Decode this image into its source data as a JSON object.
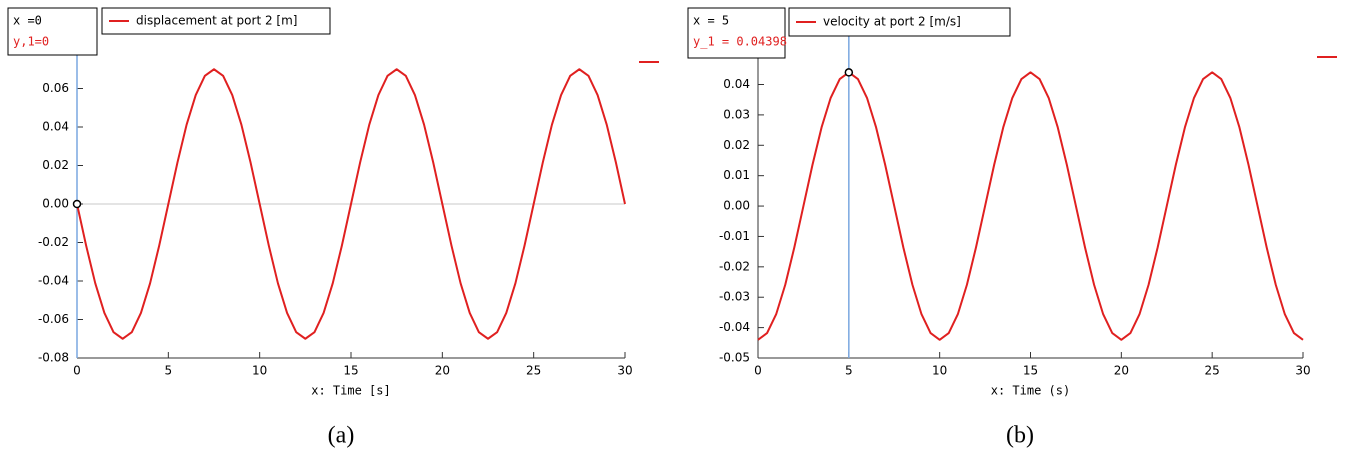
{
  "chart_data": [
    {
      "type": "line",
      "xlim": [
        0,
        30
      ],
      "ylim": [
        -0.08,
        0.08
      ],
      "xticks": [
        0,
        5,
        10,
        15,
        20,
        25,
        30
      ],
      "yticks": [
        -0.08,
        -0.06,
        -0.04,
        -0.02,
        {
          "value": 0,
          "label": "0.00"
        },
        0.02,
        0.04,
        0.06
      ],
      "x_label": "x: Time [s]",
      "caption": "(a)",
      "zero_line": true,
      "cursor": {
        "x": 0,
        "y": 0,
        "x_text": "x  =0",
        "y_text": "y,1=0"
      },
      "x": [
        0,
        0.5,
        1,
        1.5,
        2,
        2.5,
        3,
        3.5,
        4,
        4.5,
        5,
        5.5,
        6,
        6.5,
        7,
        7.5,
        8,
        8.5,
        9,
        9.5,
        10,
        10.5,
        11,
        11.5,
        12,
        12.5,
        13,
        13.5,
        14,
        14.5,
        15,
        15.5,
        16,
        16.5,
        17,
        17.5,
        18,
        18.5,
        19,
        19.5,
        20,
        20.5,
        21,
        21.5,
        22,
        22.5,
        23,
        23.5,
        24,
        24.5,
        25,
        25.5,
        26,
        26.5,
        27,
        27.5,
        28,
        28.5,
        29,
        29.5,
        30
      ],
      "series": [
        {
          "name": "displacement at port 2 [m]",
          "color": "#e02020",
          "values": [
            0,
            -0.0216,
            -0.0412,
            -0.0566,
            -0.0666,
            -0.07,
            -0.0666,
            -0.0566,
            -0.0412,
            -0.0216,
            0,
            0.0216,
            0.0412,
            0.0566,
            0.0666,
            0.07,
            0.0666,
            0.0566,
            0.0412,
            0.0216,
            0,
            -0.0216,
            -0.0412,
            -0.0566,
            -0.0666,
            -0.07,
            -0.0666,
            -0.0566,
            -0.0412,
            -0.0216,
            0,
            0.0216,
            0.0412,
            0.0566,
            0.0666,
            0.07,
            0.0666,
            0.0566,
            0.0412,
            0.0216,
            0,
            -0.0216,
            -0.0412,
            -0.0566,
            -0.0666,
            -0.07,
            -0.0666,
            -0.0566,
            -0.0412,
            -0.0216,
            0,
            0.0216,
            0.0412,
            0.0566,
            0.0666,
            0.07,
            0.0666,
            0.0566,
            0.0412,
            0.0216,
            0
          ]
        }
      ]
    },
    {
      "type": "line",
      "xlim": [
        0,
        30
      ],
      "ylim": [
        -0.05,
        0.053
      ],
      "xticks": [
        0,
        5,
        10,
        15,
        20,
        25,
        30
      ],
      "yticks": [
        -0.05,
        -0.04,
        -0.03,
        -0.02,
        -0.01,
        {
          "value": 0,
          "label": "0.00"
        },
        0.01,
        0.02,
        0.03,
        0.04
      ],
      "x_label": "x: Time (s)",
      "caption": "(b)",
      "zero_line": false,
      "cursor": {
        "x": 5,
        "y": 0.04398,
        "x_text": "x  = 5",
        "y_text": "y_1 = 0.04398"
      },
      "x": [
        0,
        0.5,
        1,
        1.5,
        2,
        2.5,
        3,
        3.5,
        4,
        4.5,
        5,
        5.5,
        6,
        6.5,
        7,
        7.5,
        8,
        8.5,
        9,
        9.5,
        10,
        10.5,
        11,
        11.5,
        12,
        12.5,
        13,
        13.5,
        14,
        14.5,
        15,
        15.5,
        16,
        16.5,
        17,
        17.5,
        18,
        18.5,
        19,
        19.5,
        20,
        20.5,
        21,
        21.5,
        22,
        22.5,
        23,
        23.5,
        24,
        24.5,
        25,
        25.5,
        26,
        26.5,
        27,
        27.5,
        28,
        28.5,
        29,
        29.5,
        30
      ],
      "series": [
        {
          "name": "velocity at port 2 [m/s]",
          "color": "#e02020",
          "values": [
            -0.044,
            -0.0418,
            -0.0356,
            -0.0259,
            -0.0136,
            0,
            0.0136,
            0.0259,
            0.0356,
            0.0418,
            0.044,
            0.0418,
            0.0356,
            0.0259,
            0.0136,
            0,
            -0.0136,
            -0.0259,
            -0.0356,
            -0.0418,
            -0.044,
            -0.0418,
            -0.0356,
            -0.0259,
            -0.0136,
            0,
            0.0136,
            0.0259,
            0.0356,
            0.0418,
            0.044,
            0.0418,
            0.0356,
            0.0259,
            0.0136,
            0,
            -0.0136,
            -0.0259,
            -0.0356,
            -0.0418,
            -0.044,
            -0.0418,
            -0.0356,
            -0.0259,
            -0.0136,
            0,
            0.0136,
            0.0259,
            0.0356,
            0.0418,
            0.044,
            0.0418,
            0.0356,
            0.0259,
            0.0136,
            0,
            -0.0136,
            -0.0259,
            -0.0356,
            -0.0418,
            -0.044
          ]
        }
      ]
    }
  ]
}
